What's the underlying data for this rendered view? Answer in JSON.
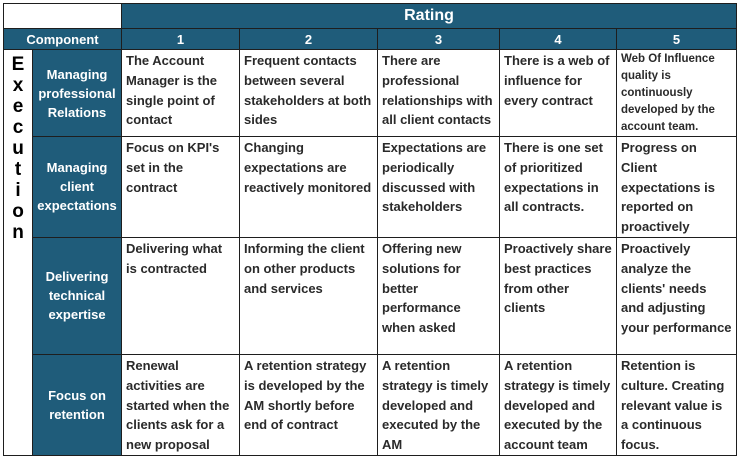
{
  "header": {
    "rating_label": "Rating",
    "component_label": "Component",
    "ratings": [
      "1",
      "2",
      "3",
      "4",
      "5"
    ]
  },
  "section_label": [
    "E",
    "x",
    "e",
    "c",
    "u",
    "t",
    "i",
    "o",
    "n"
  ],
  "rows": [
    {
      "component": "Managing professional Relations",
      "cells": [
        "The Account Manager is the single point of contact",
        "Frequent contacts between several stakeholders at both sides",
        "There are professional relationships with all client contacts",
        "There is a web of influence for every contract",
        "Web Of Influence quality is continuously developed by the account team."
      ]
    },
    {
      "component": "Managing client expectations",
      "cells": [
        "Focus on KPI's set in the contract",
        "Changing expectations are reactively monitored",
        "Expectations are periodically discussed with stakeholders",
        "There is one set of prioritized expectations in all contracts.",
        "Progress on Client expectations is reported on proactively"
      ]
    },
    {
      "component": "Delivering technical expertise",
      "cells": [
        "Delivering what is contracted",
        "Informing the client on other products and services",
        "Offering new solutions for better performance when asked",
        "Proactively share best practices from other clients",
        "Proactively analyze the clients' needs and adjusting your performance"
      ]
    },
    {
      "component": "Focus on retention",
      "cells": [
        "Renewal activities are started when the clients ask for a new proposal",
        "A retention strategy is developed by the AM shortly before end of contract",
        "A retention strategy is timely developed and executed by the AM",
        "A retention strategy is timely developed and executed by the account team",
        "Retention is culture. Creating relevant value is a continuous focus."
      ]
    }
  ]
}
